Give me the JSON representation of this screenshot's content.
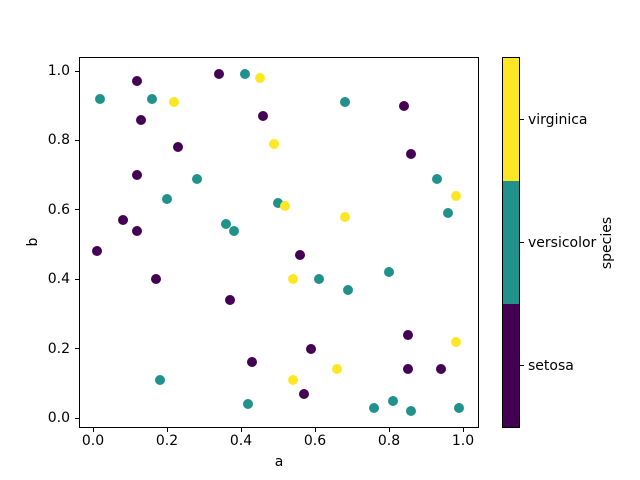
{
  "chart_data": {
    "type": "scatter",
    "title": "",
    "xlabel": "a",
    "ylabel": "b",
    "x_tick_labels": [
      "0.0",
      "0.2",
      "0.4",
      "0.6",
      "0.8",
      "1.0"
    ],
    "y_tick_labels": [
      "0.0",
      "0.2",
      "0.4",
      "0.6",
      "0.8",
      "1.0"
    ],
    "xlim": [
      -0.04,
      1.04
    ],
    "ylim": [
      -0.03,
      1.04
    ],
    "grid": false,
    "marker": "circle",
    "colorbar": {
      "label": "species",
      "orientation": "vertical",
      "position": "right",
      "entries": [
        {
          "label": "virginica",
          "color": "#fde725"
        },
        {
          "label": "versicolor",
          "color": "#21918c"
        },
        {
          "label": "setosa",
          "color": "#440154"
        }
      ]
    },
    "series": [
      {
        "name": "setosa",
        "color": "#440154",
        "points": [
          [
            0.12,
            0.97
          ],
          [
            0.13,
            0.86
          ],
          [
            0.34,
            0.99
          ],
          [
            0.46,
            0.87
          ],
          [
            0.23,
            0.78
          ],
          [
            0.12,
            0.7
          ],
          [
            0.08,
            0.57
          ],
          [
            0.12,
            0.54
          ],
          [
            0.84,
            0.9
          ],
          [
            0.86,
            0.76
          ],
          [
            0.01,
            0.48
          ],
          [
            0.17,
            0.4
          ],
          [
            0.37,
            0.34
          ],
          [
            0.56,
            0.47
          ],
          [
            0.59,
            0.2
          ],
          [
            0.43,
            0.16
          ],
          [
            0.57,
            0.07
          ],
          [
            0.85,
            0.24
          ],
          [
            0.85,
            0.14
          ],
          [
            0.94,
            0.14
          ]
        ]
      },
      {
        "name": "versicolor",
        "color": "#21918c",
        "points": [
          [
            0.02,
            0.92
          ],
          [
            0.16,
            0.92
          ],
          [
            0.41,
            0.99
          ],
          [
            0.68,
            0.91
          ],
          [
            0.28,
            0.69
          ],
          [
            0.93,
            0.69
          ],
          [
            0.2,
            0.63
          ],
          [
            0.5,
            0.62
          ],
          [
            0.96,
            0.59
          ],
          [
            0.36,
            0.56
          ],
          [
            0.38,
            0.54
          ],
          [
            0.61,
            0.4
          ],
          [
            0.69,
            0.37
          ],
          [
            0.8,
            0.42
          ],
          [
            0.18,
            0.11
          ],
          [
            0.42,
            0.04
          ],
          [
            0.76,
            0.03
          ],
          [
            0.81,
            0.05
          ],
          [
            0.86,
            0.02
          ],
          [
            0.99,
            0.03
          ]
        ]
      },
      {
        "name": "virginica",
        "color": "#fde725",
        "points": [
          [
            0.22,
            0.91
          ],
          [
            0.45,
            0.98
          ],
          [
            0.49,
            0.79
          ],
          [
            0.52,
            0.61
          ],
          [
            0.98,
            0.64
          ],
          [
            0.68,
            0.58
          ],
          [
            0.54,
            0.4
          ],
          [
            0.66,
            0.14
          ],
          [
            0.54,
            0.11
          ],
          [
            0.98,
            0.22
          ]
        ]
      }
    ]
  }
}
